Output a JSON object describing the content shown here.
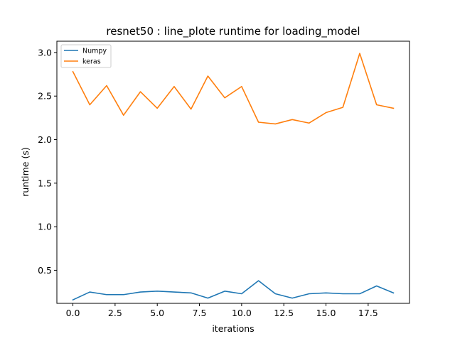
{
  "chart_data": {
    "type": "line",
    "title": "resnet50 : line_plote runtime  for loading_model",
    "xlabel": "iterations",
    "ylabel": "runtime (s)",
    "xlim": [
      -0.95,
      19.95
    ],
    "ylim": [
      0.12,
      3.13
    ],
    "xticks": [
      0.0,
      2.5,
      5.0,
      7.5,
      10.0,
      12.5,
      15.0,
      17.5
    ],
    "xtick_labels": [
      "0.0",
      "2.5",
      "5.0",
      "7.5",
      "10.0",
      "12.5",
      "15.0",
      "17.5"
    ],
    "yticks": [
      0.5,
      1.0,
      1.5,
      2.0,
      2.5,
      3.0
    ],
    "ytick_labels": [
      "0.5",
      "1.0",
      "1.5",
      "2.0",
      "2.5",
      "3.0"
    ],
    "legend_position": "top-left",
    "grid": false,
    "x": [
      0,
      1,
      2,
      3,
      4,
      5,
      6,
      7,
      8,
      9,
      10,
      11,
      12,
      13,
      14,
      15,
      16,
      17,
      18,
      19
    ],
    "series": [
      {
        "name": "Numpy",
        "color": "#1f77b4",
        "values": [
          0.16,
          0.25,
          0.22,
          0.22,
          0.25,
          0.26,
          0.25,
          0.24,
          0.18,
          0.26,
          0.23,
          0.38,
          0.23,
          0.18,
          0.23,
          0.24,
          0.23,
          0.23,
          0.32,
          0.24
        ]
      },
      {
        "name": "keras",
        "color": "#ff7f0e",
        "values": [
          2.78,
          2.4,
          2.62,
          2.28,
          2.55,
          2.36,
          2.61,
          2.35,
          2.73,
          2.48,
          2.61,
          2.2,
          2.18,
          2.23,
          2.19,
          2.31,
          2.37,
          2.99,
          2.4,
          2.36
        ]
      }
    ]
  }
}
